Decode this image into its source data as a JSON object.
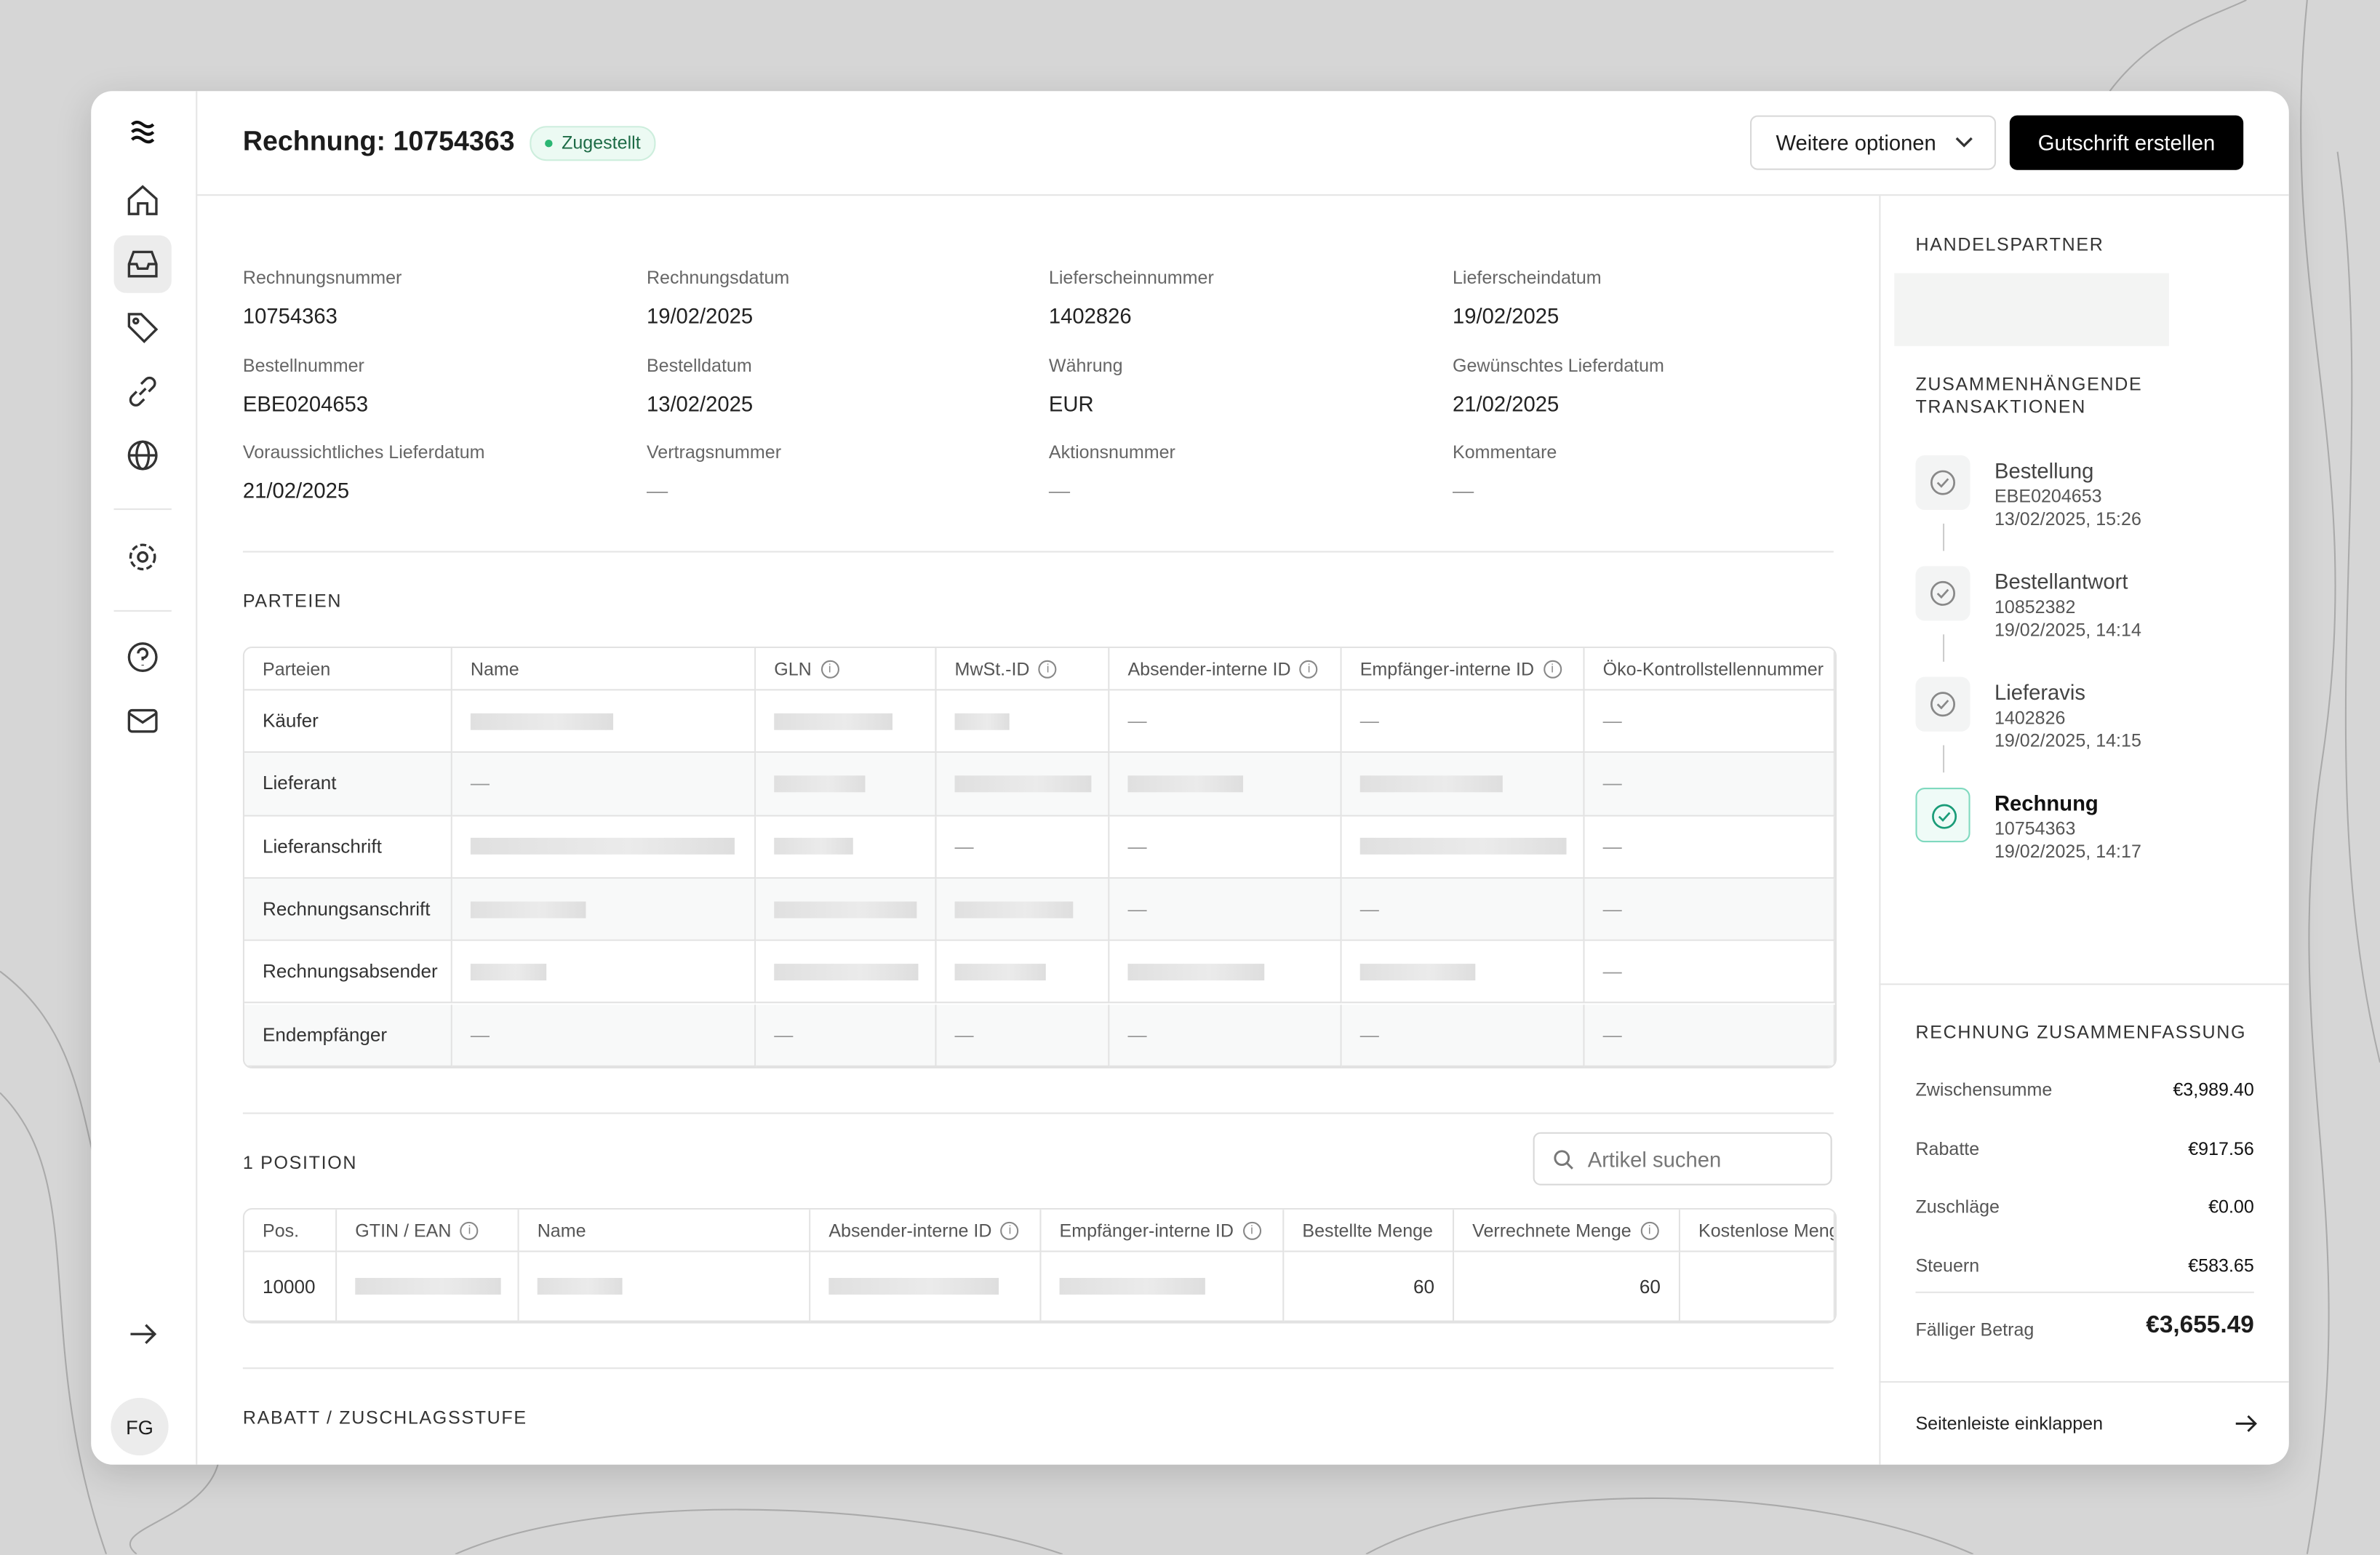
{
  "header": {
    "title": "Rechnung: 10754363",
    "status": "Zugestellt",
    "more_button": "Weitere optionen",
    "primary_button": "Gutschrift erstellen"
  },
  "fields": [
    {
      "label": "Rechnungsnummer",
      "value": "10754363"
    },
    {
      "label": "Rechnungsdatum",
      "value": "19/02/2025"
    },
    {
      "label": "Lieferscheinnummer",
      "value": "1402826"
    },
    {
      "label": "Lieferscheindatum",
      "value": "19/02/2025"
    },
    {
      "label": "Bestellnummer",
      "value": "EBE0204653"
    },
    {
      "label": "Bestelldatum",
      "value": "13/02/2025"
    },
    {
      "label": "Währung",
      "value": "EUR"
    },
    {
      "label": "Gewünschtes Lieferdatum",
      "value": "21/02/2025"
    },
    {
      "label": "Voraussichtliches Lieferdatum",
      "value": "21/02/2025"
    },
    {
      "label": "Vertragsnummer",
      "value": "—"
    },
    {
      "label": "Aktionsnummer",
      "value": "—"
    },
    {
      "label": "Kommentare",
      "value": "—"
    }
  ],
  "parties": {
    "title": "PARTEIEN",
    "columns": [
      "Parteien",
      "Name",
      "GLN",
      "MwSt.-ID",
      "Absender-interne ID",
      "Empfänger-interne ID",
      "Öko-Kontrollstellennummer"
    ],
    "rows": [
      [
        "Käufer",
        null,
        null,
        null,
        "—",
        "—",
        "—"
      ],
      [
        "Lieferant",
        "—",
        null,
        null,
        null,
        null,
        "—"
      ],
      [
        "Lieferanschrift",
        null,
        null,
        "—",
        "—",
        null,
        "—"
      ],
      [
        "Rechnungsanschrift",
        null,
        null,
        null,
        "—",
        "—",
        "—"
      ],
      [
        "Rechnungsabsender",
        null,
        null,
        null,
        null,
        null,
        "—"
      ],
      [
        "Endempfänger",
        "—",
        "—",
        "—",
        "—",
        "—",
        "—"
      ]
    ]
  },
  "positions": {
    "title": "1 POSITION",
    "search_placeholder": "Artikel suchen",
    "columns": [
      "Pos.",
      "GTIN / EAN",
      "Name",
      "Absender-interne ID",
      "Empfänger-interne ID",
      "Bestellte Menge",
      "Verrechnete Menge",
      "Kostenlose Menge"
    ],
    "rows": [
      [
        "10000",
        null,
        null,
        null,
        null,
        "60",
        "60"
      ]
    ]
  },
  "discount_section": {
    "title": "RABATT / ZUSCHLAGSSTUFE"
  },
  "sidebar": {
    "partner_title": "HANDELSPARTNER",
    "transactions_title": "ZUSAMMENHÄNGENDE TRANSAKTIONEN",
    "transactions": [
      {
        "name": "Bestellung",
        "id": "EBE0204653",
        "date": "13/02/2025, 15:26"
      },
      {
        "name": "Bestellantwort",
        "id": "10852382",
        "date": "19/02/2025, 14:14"
      },
      {
        "name": "Lieferavis",
        "id": "1402826",
        "date": "19/02/2025, 14:15"
      },
      {
        "name": "Rechnung",
        "id": "10754363",
        "date": "19/02/2025, 14:17"
      }
    ],
    "summary_title": "RECHNUNG ZUSAMMENFASSUNG",
    "summary": [
      {
        "label": "Zwischensumme",
        "value": "€3,989.40"
      },
      {
        "label": "Rabatte",
        "value": "€917.56"
      },
      {
        "label": "Zuschläge",
        "value": "€0.00"
      },
      {
        "label": "Steuern",
        "value": "€583.65"
      }
    ],
    "total": {
      "label": "Fälliger Betrag",
      "value": "€3,655.49"
    },
    "collapse": "Seitenleiste einklappen"
  },
  "user": {
    "initials": "FG"
  }
}
